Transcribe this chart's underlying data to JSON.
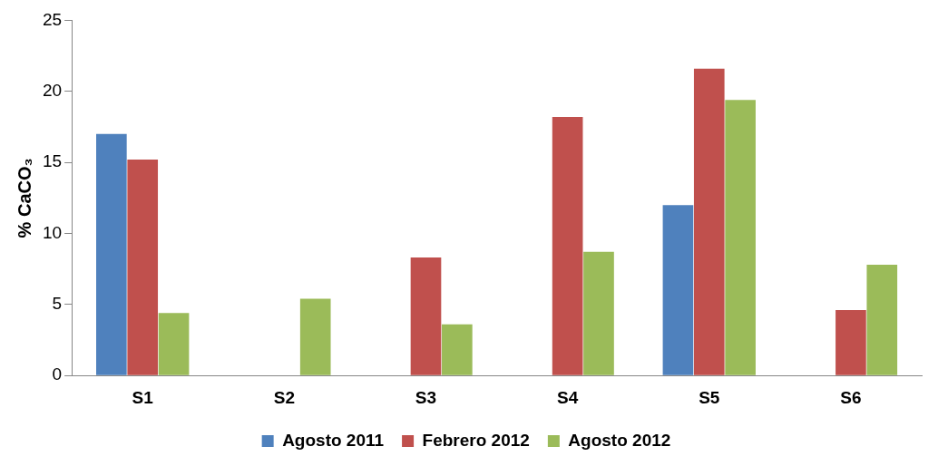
{
  "chart_data": {
    "type": "bar",
    "ylabel": "% CaCO₃",
    "categories": [
      "S1",
      "S2",
      "S3",
      "S4",
      "S5",
      "S6"
    ],
    "series": [
      {
        "name": "Agosto 2011",
        "color": "#4f81bd",
        "values": [
          17,
          null,
          null,
          null,
          12,
          null
        ]
      },
      {
        "name": "Febrero 2012",
        "color": "#c0504d",
        "values": [
          15.2,
          null,
          8.3,
          18.2,
          21.6,
          4.6
        ]
      },
      {
        "name": "Agosto 2012",
        "color": "#9bbb59",
        "values": [
          4.4,
          5.4,
          3.6,
          8.7,
          19.4,
          7.8
        ]
      }
    ],
    "ylim": [
      0,
      25
    ],
    "yticks": [
      0,
      5,
      10,
      15,
      20,
      25
    ],
    "grid": false,
    "legend": "bottom"
  }
}
